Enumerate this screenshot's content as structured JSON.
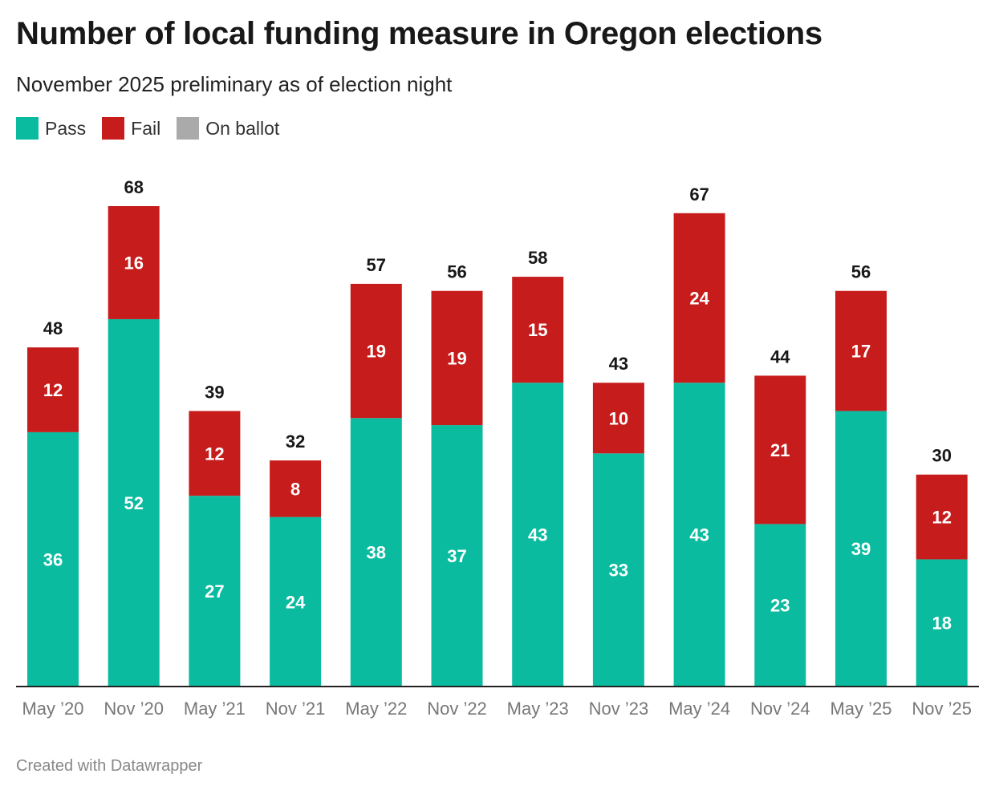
{
  "title": "Number of local funding measure in Oregon elections",
  "subtitle": "November 2025 preliminary as of election night",
  "footer": "Created with Datawrapper",
  "legend": [
    {
      "label": "Pass",
      "color": "#0bbba0"
    },
    {
      "label": "Fail",
      "color": "#c71c1c"
    },
    {
      "label": "On ballot",
      "color": "#aaaaaa"
    }
  ],
  "chart_data": {
    "type": "bar",
    "stacked": true,
    "title": "Number of local funding measure in Oregon elections",
    "subtitle": "November 2025 preliminary as of election night",
    "categories": [
      "May ’20",
      "Nov ’20",
      "May ’21",
      "Nov ’21",
      "May ’22",
      "Nov ’22",
      "May ’23",
      "Nov ’23",
      "May ’24",
      "Nov ’24",
      "May ’25",
      "Nov ’25"
    ],
    "series": [
      {
        "name": "Pass",
        "color": "#0bbba0",
        "values": [
          36,
          52,
          27,
          24,
          38,
          37,
          43,
          33,
          43,
          23,
          39,
          18
        ]
      },
      {
        "name": "Fail",
        "color": "#c71c1c",
        "values": [
          12,
          16,
          12,
          8,
          19,
          19,
          15,
          10,
          24,
          21,
          17,
          12
        ]
      },
      {
        "name": "On ballot",
        "color": "#aaaaaa",
        "values": [
          0,
          0,
          0,
          0,
          0,
          0,
          0,
          0,
          0,
          0,
          0,
          0
        ]
      }
    ],
    "totals": [
      48,
      68,
      39,
      32,
      57,
      56,
      58,
      43,
      67,
      44,
      56,
      30
    ],
    "ylim": [
      0,
      68
    ],
    "xlabel": "",
    "ylabel": "",
    "grid": false,
    "legend_position": "top-left"
  }
}
